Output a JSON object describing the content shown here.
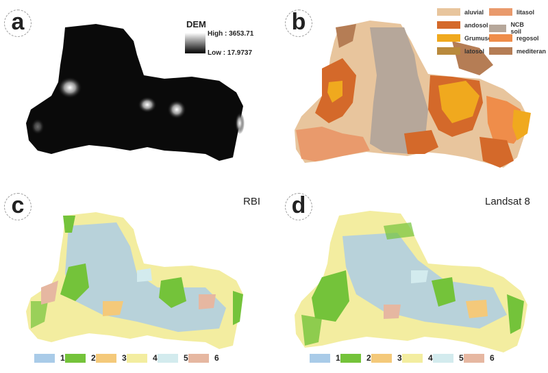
{
  "panels": {
    "a": {
      "label": "a"
    },
    "b": {
      "label": "b"
    },
    "c": {
      "label": "c",
      "title": "RBI"
    },
    "d": {
      "label": "d",
      "title": "Landsat 8"
    }
  },
  "dem_legend": {
    "title": "DEM",
    "high": "High : 3653.71",
    "low": "Low : 17.9737"
  },
  "soil_legend": [
    {
      "label": "aluvial",
      "color": "#e8c59d"
    },
    {
      "label": "andosol",
      "color": "#d4692a"
    },
    {
      "label": "Grumusol",
      "color": "#f0a91e"
    },
    {
      "label": "latosol",
      "color": "#b98a3d"
    },
    {
      "label": "litasol",
      "color": "#e99a6c"
    },
    {
      "label": "NCB soil",
      "color": "#b6a79a"
    },
    {
      "label": "regosol",
      "color": "#ef8d4a"
    },
    {
      "label": "mediteran",
      "color": "#b57d55"
    }
  ],
  "landcover_legend": [
    {
      "label": "1",
      "color": "#a9cbe8"
    },
    {
      "label": "2",
      "color": "#74c33a"
    },
    {
      "label": "3",
      "color": "#f4c97a"
    },
    {
      "label": "4",
      "color": "#f3eda0"
    },
    {
      "label": "5",
      "color": "#d3ebee"
    },
    {
      "label": "6",
      "color": "#e6b7a1"
    }
  ]
}
